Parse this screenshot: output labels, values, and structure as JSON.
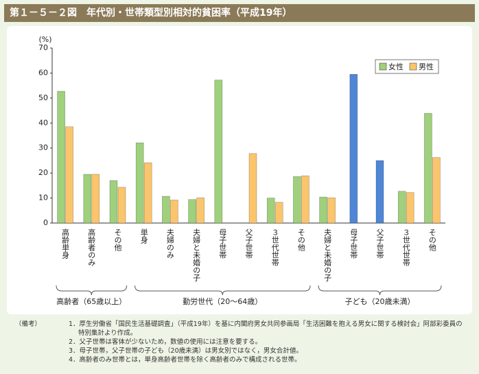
{
  "chart_data": {
    "type": "bar",
    "title": "第１－５－２図　年代別・世帯類型別相対的貧困率（平成19年）",
    "y_unit": "(%)",
    "categories": [
      "高齢単身",
      "高齢者のみ",
      "その他",
      "単身",
      "夫婦のみ",
      "夫婦と未婚の子",
      "母子世帯",
      "父子世帯",
      "３世代世帯",
      "その他",
      "夫婦と未婚の子",
      "母子世帯",
      "父子世帯",
      "３世代世帯",
      "その他"
    ],
    "series": [
      {
        "name": "女性",
        "color": "#9fd07c",
        "values": [
          52.7,
          19.5,
          17.0,
          32.1,
          10.7,
          9.4,
          57.2,
          null,
          10.0,
          18.6,
          10.4,
          null,
          null,
          12.7,
          43.9
        ]
      },
      {
        "name": "男性",
        "color": "#fbc56c",
        "values": [
          38.5,
          19.5,
          14.3,
          24.1,
          9.2,
          10.1,
          null,
          27.8,
          8.3,
          18.9,
          10.1,
          null,
          null,
          12.2,
          26.2
        ]
      },
      {
        "color": "#4f86d6",
        "values": [
          null,
          null,
          null,
          null,
          null,
          null,
          null,
          null,
          null,
          null,
          null,
          59.5,
          25.0,
          null,
          null
        ]
      }
    ],
    "groups": [
      "高齢者（65歳以上）",
      "勤労世代（20～64歳）",
      "子ども（20歳未満）"
    ],
    "ylim": [
      0,
      70
    ],
    "yticks": [
      0,
      10,
      20,
      30,
      40,
      50,
      60,
      70
    ],
    "legend": "top-right"
  },
  "notes_label": "（備考）",
  "notes": [
    "1．厚生労働省「国民生活基礎調査」（平成19年）を基に内閣府男女共同参画局「生活困難を抱える男女に関する検討会」阿部彩委員の特別集計より作成。",
    "2．父子世帯は客体が少ないため，数値の使用には注意を要する。",
    "3．母子世帯，父子世帯の子ども（20歳未満）は男女別ではなく，男女合計値。",
    "4．高齢者のみ世帯とは，単身高齢者世帯を除く高齢者のみで構成される世帯。"
  ]
}
